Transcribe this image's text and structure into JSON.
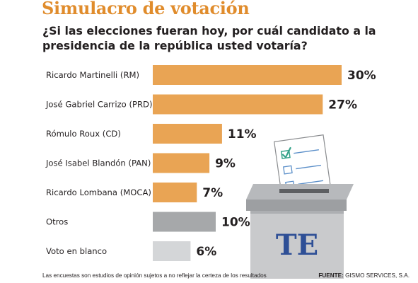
{
  "header": {
    "title": "Simulacro de votación",
    "question": "¿Si las elecciones fueran hoy, por cuál candidato a la presidencia de la república usted votaría?"
  },
  "colors": {
    "title": "#e08c2c",
    "candidate_bar": "#e9a454",
    "otros_bar": "#a6a8aa",
    "blanco_bar": "#d4d6d8",
    "box_body": "#c9cacc",
    "box_lid": "#9d9fa2",
    "box_logo": "#2e4f96"
  },
  "chart_data": {
    "type": "bar",
    "orientation": "horizontal",
    "categories": [
      "Ricardo Martinelli (RM)",
      "José Gabriel Carrizo (PRD)",
      "Rómulo Roux (CD)",
      "José Isabel Blandón (PAN)",
      "Ricardo Lombana (MOCA)",
      "Otros",
      "Voto en blanco"
    ],
    "values": [
      30,
      27,
      11,
      9,
      7,
      10,
      6
    ],
    "value_labels": [
      "30%",
      "27%",
      "11%",
      "9%",
      "7%",
      "10%",
      "6%"
    ],
    "bar_colors": [
      "#e9a454",
      "#e9a454",
      "#e9a454",
      "#e9a454",
      "#e9a454",
      "#a6a8aa",
      "#d4d6d8"
    ],
    "title": "Simulacro de votación",
    "xlabel": "",
    "ylabel": "",
    "xlim": [
      0,
      30
    ],
    "grid": false,
    "legend": "none"
  },
  "illustration": {
    "icon": "ballot-box-icon",
    "logo_text": "TE"
  },
  "footer": {
    "note": "Las encuestas son estudios de opinión sujetos a no reflejar la certeza de los resultados",
    "source_label": "FUENTE:",
    "source_value": "GISMO SERVICES, S.A."
  }
}
